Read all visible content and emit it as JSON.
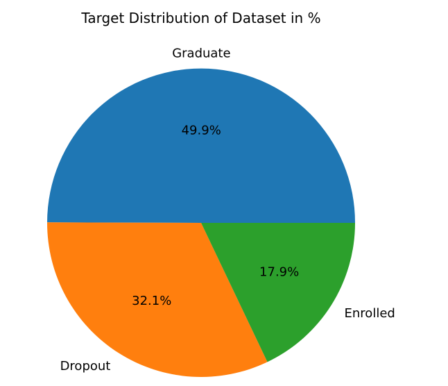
{
  "chart_data": {
    "type": "pie",
    "title": "Target Distribution of Dataset in %",
    "categories": [
      "Graduate",
      "Dropout",
      "Enrolled"
    ],
    "values": [
      49.9,
      32.1,
      17.9
    ],
    "value_labels": [
      "49.9%",
      "32.1%",
      "17.9%"
    ],
    "colors": [
      "#1f77b4",
      "#ff7f0e",
      "#2ca02c"
    ],
    "start_angle_deg": 0,
    "direction": "counterclockwise",
    "legend": "none"
  }
}
